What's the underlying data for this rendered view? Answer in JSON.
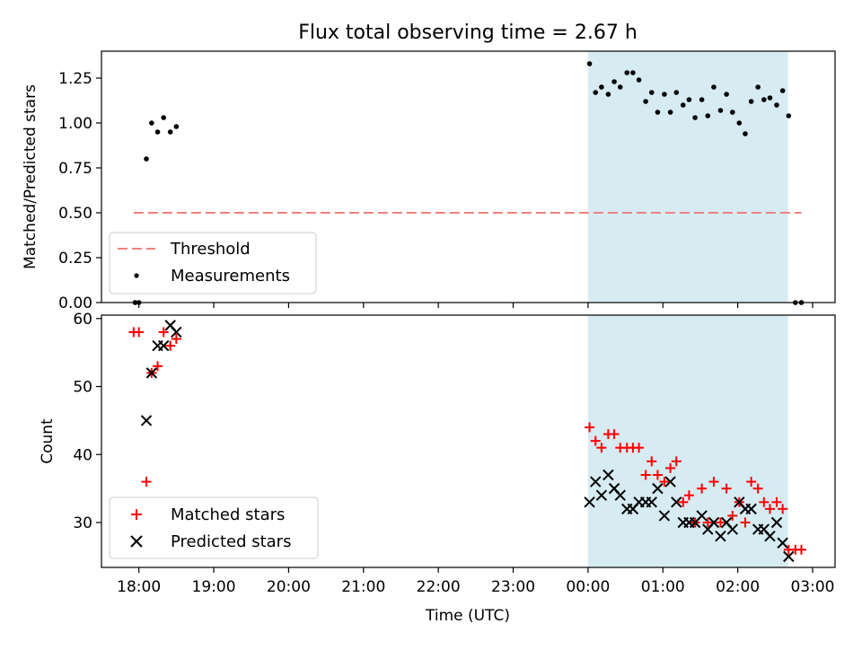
{
  "chart_data": [
    {
      "type": "scatter",
      "title": "Flux total observing time = 2.67 h",
      "xlabel": "",
      "ylabel": "Matched/Predicted stars",
      "ylim": [
        0,
        1.4
      ],
      "xlim_hours": [
        -6.5,
        3.3
      ],
      "yticks": [
        "0.00",
        "0.25",
        "0.50",
        "0.75",
        "1.00",
        "1.25"
      ],
      "ytick_values": [
        0,
        0.25,
        0.5,
        0.75,
        1.0,
        1.25
      ],
      "shaded_span_hours": [
        0.0,
        2.67
      ],
      "threshold": {
        "value": 0.5,
        "x_hours": [
          -6.07,
          2.85
        ],
        "color": "#f08080"
      },
      "legend": {
        "placement": "bottom-left",
        "entries": [
          "Threshold",
          "Measurements"
        ]
      },
      "series": [
        {
          "name": "Measurements",
          "marker": "dot",
          "color": "#000000",
          "x": [
            -6.05,
            -6.0,
            -5.9,
            -5.83,
            -5.75,
            -5.67,
            -5.58,
            -5.5,
            0.02,
            0.1,
            0.18,
            0.27,
            0.35,
            0.43,
            0.52,
            0.6,
            0.68,
            0.77,
            0.85,
            0.93,
            1.02,
            1.1,
            1.18,
            1.27,
            1.35,
            1.43,
            1.52,
            1.6,
            1.68,
            1.77,
            1.85,
            1.93,
            2.02,
            2.1,
            2.18,
            2.27,
            2.35,
            2.43,
            2.52,
            2.6,
            2.68,
            2.77,
            2.85
          ],
          "y": [
            0.0,
            0.0,
            0.8,
            1.0,
            0.95,
            1.03,
            0.95,
            0.98,
            1.33,
            1.17,
            1.2,
            1.16,
            1.23,
            1.2,
            1.28,
            1.28,
            1.24,
            1.12,
            1.17,
            1.06,
            1.16,
            1.06,
            1.17,
            1.1,
            1.13,
            1.03,
            1.13,
            1.04,
            1.2,
            1.07,
            1.16,
            1.06,
            1.0,
            0.94,
            1.12,
            1.2,
            1.13,
            1.14,
            1.1,
            1.18,
            1.04,
            0.0,
            0.0
          ]
        }
      ]
    },
    {
      "type": "scatter",
      "title": "",
      "xlabel": "Time (UTC)",
      "ylabel": "Count",
      "ylim": [
        23.4,
        60.5
      ],
      "xlim_hours": [
        -6.5,
        3.3
      ],
      "yticks": [
        "30",
        "40",
        "50",
        "60"
      ],
      "ytick_values": [
        30,
        40,
        50,
        60
      ],
      "xticks": [
        "18:00",
        "19:00",
        "20:00",
        "21:00",
        "22:00",
        "23:00",
        "00:00",
        "01:00",
        "02:00",
        "03:00"
      ],
      "xtick_hours": [
        -6,
        -5,
        -4,
        -3,
        -2,
        -1,
        0,
        1,
        2,
        3
      ],
      "shaded_span_hours": [
        0.0,
        2.67
      ],
      "legend": {
        "placement": "bottom-left",
        "entries": [
          "Matched stars",
          "Predicted stars"
        ]
      },
      "series": [
        {
          "name": "Matched stars",
          "marker": "plus",
          "color": "#ff0000",
          "x": [
            -6.07,
            -6.0,
            -5.9,
            -5.83,
            -5.75,
            -5.67,
            -5.58,
            -5.5,
            0.02,
            0.1,
            0.18,
            0.27,
            0.35,
            0.43,
            0.52,
            0.6,
            0.68,
            0.77,
            0.85,
            0.93,
            1.02,
            1.1,
            1.18,
            1.27,
            1.35,
            1.43,
            1.52,
            1.6,
            1.68,
            1.77,
            1.85,
            1.93,
            2.02,
            2.1,
            2.18,
            2.27,
            2.35,
            2.43,
            2.52,
            2.6,
            2.68,
            2.77,
            2.85
          ],
          "y": [
            58,
            58,
            36,
            52,
            53,
            58,
            56,
            57,
            44,
            42,
            41,
            43,
            43,
            41,
            41,
            41,
            41,
            37,
            39,
            37,
            36,
            38,
            39,
            33,
            34,
            30,
            35,
            30,
            36,
            30,
            35,
            31,
            33,
            30,
            36,
            35,
            33,
            32,
            33,
            32,
            26,
            26,
            26
          ]
        },
        {
          "name": "Predicted stars",
          "marker": "x",
          "color": "#000000",
          "x": [
            -5.9,
            -5.83,
            -5.75,
            -5.67,
            -5.58,
            -5.5,
            0.02,
            0.1,
            0.18,
            0.27,
            0.35,
            0.43,
            0.52,
            0.6,
            0.68,
            0.77,
            0.85,
            0.93,
            1.02,
            1.1,
            1.18,
            1.27,
            1.35,
            1.43,
            1.52,
            1.6,
            1.68,
            1.77,
            1.85,
            1.93,
            2.02,
            2.1,
            2.18,
            2.27,
            2.35,
            2.43,
            2.52,
            2.6,
            2.68
          ],
          "y": [
            45,
            52,
            56,
            56,
            59,
            58,
            33,
            36,
            34,
            37,
            35,
            34,
            32,
            32,
            33,
            33,
            33,
            35,
            31,
            36,
            33,
            30,
            30,
            30,
            31,
            29,
            30,
            28,
            30,
            29,
            33,
            32,
            32,
            29,
            29,
            28,
            30,
            27,
            25
          ]
        }
      ]
    }
  ]
}
